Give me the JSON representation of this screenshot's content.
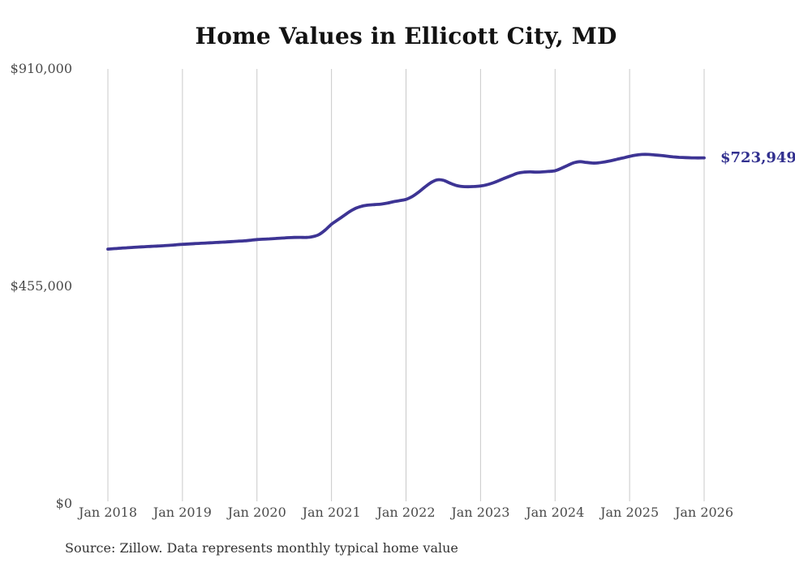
{
  "chart_data": {
    "type": "line",
    "title": "Home Values in Ellicott City, MD",
    "source_note": "Source: Zillow. Data represents monthly typical home value",
    "end_label": "$723,949",
    "end_value": 723949,
    "x_tick_labels": [
      "Jan 2018",
      "Jan 2019",
      "Jan 2020",
      "Jan 2021",
      "Jan 2022",
      "Jan 2023",
      "Jan 2024",
      "Jan 2025",
      "Jan 2026"
    ],
    "y_ticks": [
      {
        "label": "$0",
        "value": 0
      },
      {
        "label": "$455,000",
        "value": 455000
      },
      {
        "label": "$910,000",
        "value": 910000
      }
    ],
    "ylim": [
      0,
      910000
    ],
    "grid": "vertical-only",
    "legend": "none",
    "colors": {
      "line": "#3d3494",
      "end_label": "#32308f",
      "gridline": "#c9c9c9",
      "axis_text": "#4a4a4a",
      "title_text": "#121212",
      "source_text": "#333333"
    },
    "series": [
      {
        "name": "Monthly typical home value",
        "start_month": "Jan 2018",
        "end_month": "Jan 2026",
        "interval": "monthly",
        "months_per_gridline": 12,
        "values": [
          533000,
          533900,
          534800,
          535700,
          536500,
          537300,
          538000,
          538700,
          539400,
          540100,
          540900,
          542000,
          543000,
          543700,
          544400,
          545100,
          545800,
          546500,
          547200,
          547900,
          548700,
          549500,
          550300,
          551500,
          553000,
          553700,
          554400,
          555200,
          556000,
          556800,
          557400,
          557600,
          557300,
          559000,
          563500,
          573000,
          585000,
          594000,
          603000,
          612000,
          619000,
          623000,
          625200,
          626200,
          627200,
          629200,
          632200,
          634500,
          637000,
          643000,
          652000,
          662500,
          672000,
          678000,
          677000,
          671500,
          666500,
          664000,
          663500,
          664000,
          665000,
          667500,
          671500,
          676500,
          682000,
          687000,
          692000,
          694000,
          694500,
          694000,
          694500,
          695500,
          697000,
          702000,
          708000,
          713500,
          716000,
          714500,
          713000,
          713500,
          715500,
          718000,
          721000,
          724000,
          727000,
          729500,
          731000,
          731000,
          730000,
          729000,
          727500,
          726000,
          725000,
          724500,
          724000,
          723800,
          723949
        ]
      }
    ]
  }
}
